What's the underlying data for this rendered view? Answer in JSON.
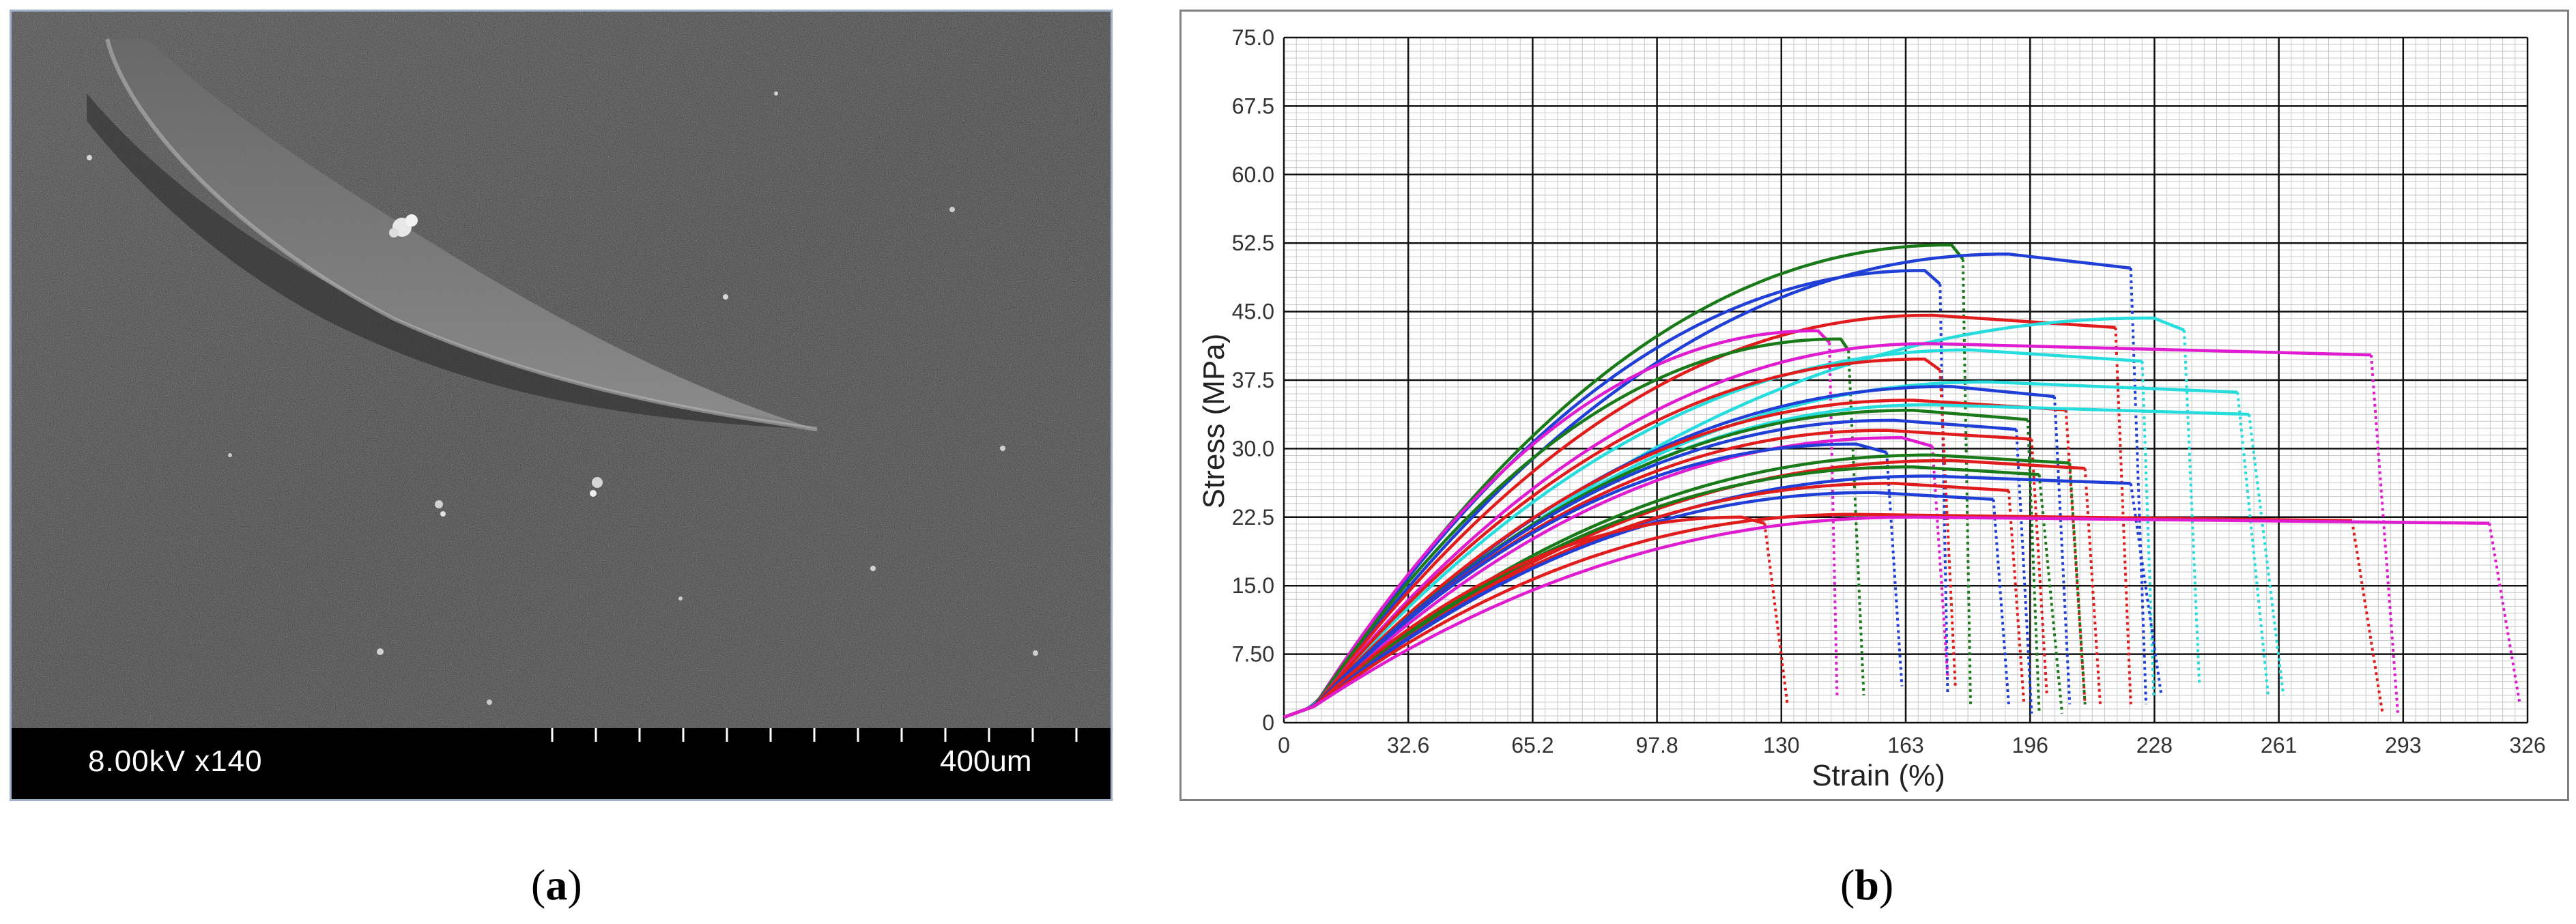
{
  "panel_a": {
    "label": "a",
    "sem_info": "8.00kV x140",
    "scale_label": "400um"
  },
  "panel_b": {
    "label": "b"
  },
  "chart_data": {
    "type": "line",
    "xlabel": "Strain (%)",
    "ylabel": "Stress (MPa)",
    "xlim": [
      0,
      326
    ],
    "ylim": [
      0,
      75
    ],
    "x_ticks": [
      "0",
      "32.6",
      "65.2",
      "97.8",
      "130",
      "163",
      "196",
      "228",
      "261",
      "293",
      "326"
    ],
    "y_ticks": [
      "0",
      "7.50",
      "15.0",
      "22.5",
      "30.0",
      "37.5",
      "45.0",
      "52.5",
      "60.0",
      "67.5",
      "75.0"
    ],
    "grid": true,
    "series": [
      {
        "color": "#1a7a1a",
        "peak_strain": 175,
        "peak_stress": 52.3,
        "break_strain": 178,
        "end_strain": 180,
        "end_stress": 2
      },
      {
        "color": "#1f3fd6",
        "peak_strain": 190,
        "peak_stress": 51.3,
        "break_strain": 222,
        "end_strain": 226,
        "end_stress": 2
      },
      {
        "color": "#1f3fd6",
        "peak_strain": 168,
        "peak_stress": 49.5,
        "break_strain": 172,
        "end_strain": 174,
        "end_stress": 3
      },
      {
        "color": "#e01c1c",
        "peak_strain": 170,
        "peak_stress": 44.6,
        "break_strain": 218,
        "end_strain": 222,
        "end_stress": 2
      },
      {
        "color": "#26dcdc",
        "peak_strain": 228,
        "peak_stress": 44.3,
        "break_strain": 236,
        "end_strain": 240,
        "end_stress": 4
      },
      {
        "color": "#e01cd0",
        "peak_strain": 140,
        "peak_stress": 42.9,
        "break_strain": 143,
        "end_strain": 145,
        "end_stress": 3
      },
      {
        "color": "#1a7a1a",
        "peak_strain": 146,
        "peak_stress": 42.0,
        "break_strain": 148,
        "end_strain": 152,
        "end_stress": 3
      },
      {
        "color": "#e01cd0",
        "peak_strain": 170,
        "peak_stress": 41.5,
        "break_strain": 285,
        "end_strain": 292,
        "end_stress": 1
      },
      {
        "color": "#26dcdc",
        "peak_strain": 180,
        "peak_stress": 40.8,
        "break_strain": 225,
        "end_strain": 228,
        "end_stress": 3
      },
      {
        "color": "#e01c1c",
        "peak_strain": 168,
        "peak_stress": 39.8,
        "break_strain": 172,
        "end_strain": 176,
        "end_stress": 4
      },
      {
        "color": "#26dcdc",
        "peak_strain": 185,
        "peak_stress": 37.3,
        "break_strain": 250,
        "end_strain": 258,
        "end_stress": 3
      },
      {
        "color": "#1f3fd6",
        "peak_strain": 175,
        "peak_stress": 36.8,
        "break_strain": 202,
        "end_strain": 206,
        "end_stress": 2
      },
      {
        "color": "#e01c1c",
        "peak_strain": 165,
        "peak_stress": 35.3,
        "break_strain": 205,
        "end_strain": 210,
        "end_stress": 2
      },
      {
        "color": "#26dcdc",
        "peak_strain": 170,
        "peak_stress": 34.8,
        "break_strain": 253,
        "end_strain": 262,
        "end_stress": 3
      },
      {
        "color": "#1a7a1a",
        "peak_strain": 165,
        "peak_stress": 34.2,
        "break_strain": 195,
        "end_strain": 198,
        "end_stress": 1
      },
      {
        "color": "#1f3fd6",
        "peak_strain": 160,
        "peak_stress": 33.1,
        "break_strain": 192,
        "end_strain": 196,
        "end_stress": 1
      },
      {
        "color": "#e01c1c",
        "peak_strain": 158,
        "peak_stress": 32.0,
        "break_strain": 196,
        "end_strain": 200,
        "end_stress": 3
      },
      {
        "color": "#e01cd0",
        "peak_strain": 162,
        "peak_stress": 31.2,
        "break_strain": 170,
        "end_strain": 174,
        "end_stress": 5
      },
      {
        "color": "#1f3fd6",
        "peak_strain": 150,
        "peak_stress": 30.5,
        "break_strain": 158,
        "end_strain": 162,
        "end_stress": 4
      },
      {
        "color": "#1a7a1a",
        "peak_strain": 170,
        "peak_stress": 29.3,
        "break_strain": 206,
        "end_strain": 210,
        "end_stress": 2
      },
      {
        "color": "#e01c1c",
        "peak_strain": 175,
        "peak_stress": 28.7,
        "break_strain": 210,
        "end_strain": 214,
        "end_stress": 2
      },
      {
        "color": "#1a7a1a",
        "peak_strain": 165,
        "peak_stress": 28.0,
        "break_strain": 198,
        "end_strain": 204,
        "end_stress": 1
      },
      {
        "color": "#1f3fd6",
        "peak_strain": 170,
        "peak_stress": 27.0,
        "break_strain": 222,
        "end_strain": 230,
        "end_stress": 3
      },
      {
        "color": "#e01c1c",
        "peak_strain": 160,
        "peak_stress": 26.2,
        "break_strain": 190,
        "end_strain": 194,
        "end_stress": 2
      },
      {
        "color": "#1f3fd6",
        "peak_strain": 155,
        "peak_stress": 25.2,
        "break_strain": 186,
        "end_strain": 190,
        "end_stress": 2
      },
      {
        "color": "#e01c1c",
        "peak_strain": 150,
        "peak_stress": 22.8,
        "break_strain": 280,
        "end_strain": 288,
        "end_stress": 1
      },
      {
        "color": "#e01c1c",
        "peak_strain": 120,
        "peak_stress": 22.5,
        "break_strain": 126,
        "end_strain": 132,
        "end_stress": 2
      },
      {
        "color": "#e01cd0",
        "peak_strain": 165,
        "peak_stress": 22.5,
        "break_strain": 316,
        "end_strain": 324,
        "end_stress": 2
      }
    ]
  }
}
